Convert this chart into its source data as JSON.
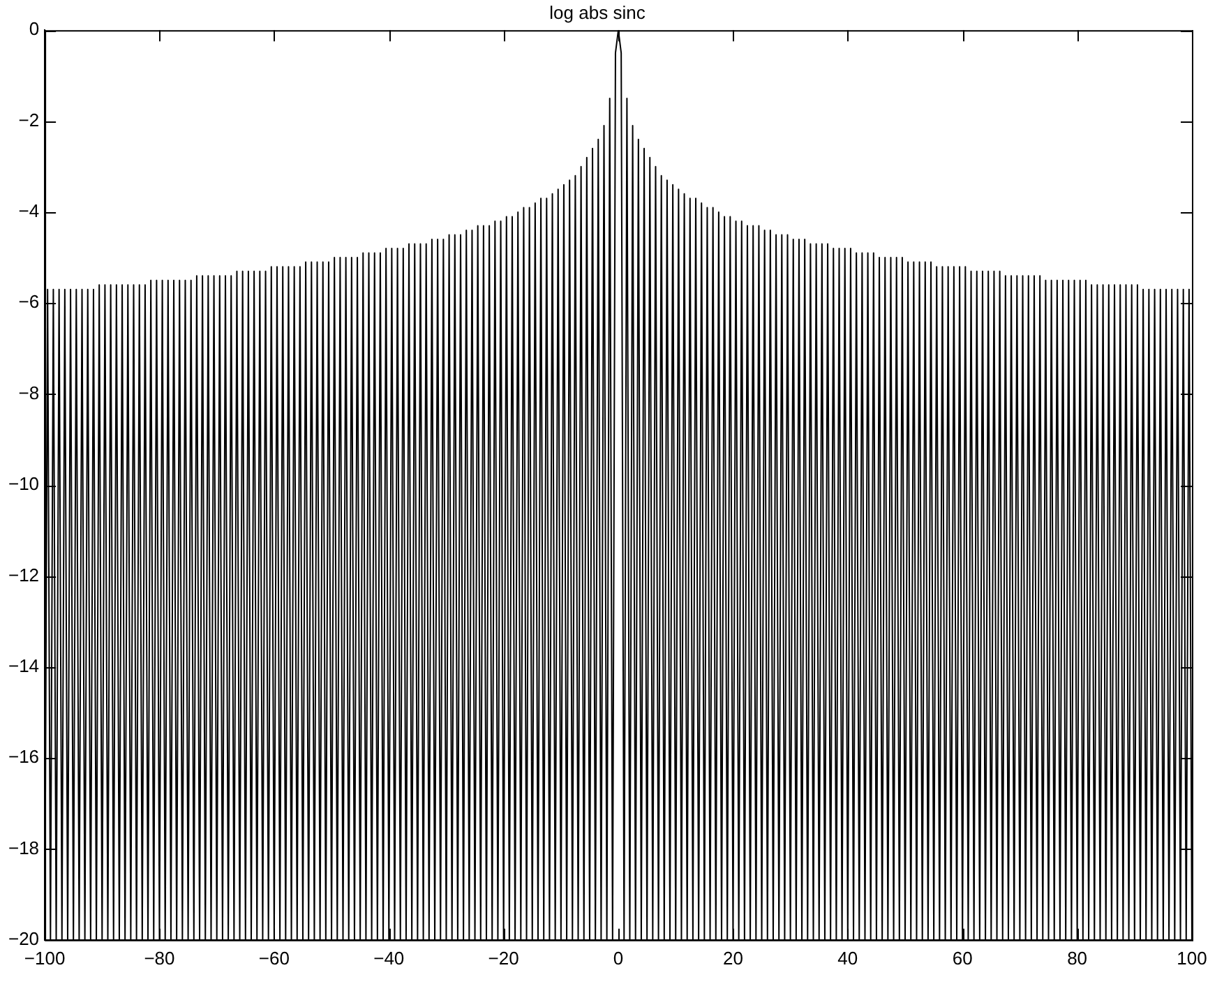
{
  "chart_data": {
    "type": "line",
    "title": "log abs sinc",
    "xlim": [
      -100,
      100
    ],
    "xticks": [
      -100,
      -80,
      -60,
      -40,
      -20,
      0,
      20,
      40,
      60,
      80,
      100
    ],
    "ylim": [
      -20,
      0
    ],
    "yticks": [
      -20,
      -18,
      -16,
      -14,
      -12,
      -10,
      -8,
      -6,
      -4,
      -2,
      0
    ],
    "series": [
      {
        "color": "#000000",
        "x": [
          -100,
          -99.5,
          -99,
          -98.5,
          -98,
          -97.5,
          -97,
          -96.5,
          -96,
          -95.5,
          -95,
          -94.5,
          -94,
          -93.5,
          -93,
          -92.5,
          -92,
          -91.5,
          -91,
          -90.5,
          -90,
          -89.5,
          -89,
          -88.5,
          -88,
          -87.5,
          -87,
          -86.5,
          -86,
          -85.5,
          -85,
          -84.5,
          -84,
          -83.5,
          -83,
          -82.5,
          -82,
          -81.5,
          -81,
          -80.5,
          -80,
          -79.5,
          -79,
          -78.5,
          -78,
          -77.5,
          -77,
          -76.5,
          -76,
          -75.5,
          -75,
          -74.5,
          -74,
          -73.5,
          -73,
          -72.5,
          -72,
          -71.5,
          -71,
          -70.5,
          -70,
          -69.5,
          -69,
          -68.5,
          -68,
          -67.5,
          -67,
          -66.5,
          -66,
          -65.5,
          -65,
          -64.5,
          -64,
          -63.5,
          -63,
          -62.5,
          -62,
          -61.5,
          -61,
          -60.5,
          -60,
          -59.5,
          -59,
          -58.5,
          -58,
          -57.5,
          -57,
          -56.5,
          -56,
          -55.5,
          -55,
          -54.5,
          -54,
          -53.5,
          -53,
          -52.5,
          -52,
          -51.5,
          -51,
          -50.5,
          -50,
          -49.5,
          -49,
          -48.5,
          -48,
          -47.5,
          -47,
          -46.5,
          -46,
          -45.5,
          -45,
          -44.5,
          -44,
          -43.5,
          -43,
          -42.5,
          -42,
          -41.5,
          -41,
          -40.5,
          -40,
          -39.5,
          -39,
          -38.5,
          -38,
          -37.5,
          -37,
          -36.5,
          -36,
          -35.5,
          -35,
          -34.5,
          -34,
          -33.5,
          -33,
          -32.5,
          -32,
          -31.5,
          -31,
          -30.5,
          -30,
          -29.5,
          -29,
          -28.5,
          -28,
          -27.5,
          -27,
          -26.5,
          -26,
          -25.5,
          -25,
          -24.5,
          -24,
          -23.5,
          -23,
          -22.5,
          -22,
          -21.5,
          -21,
          -20.5,
          -20,
          -19.5,
          -19,
          -18.5,
          -18,
          -17.5,
          -17,
          -16.5,
          -16,
          -15.5,
          -15,
          -14.5,
          -14,
          -13.5,
          -13,
          -12.5,
          -12,
          -11.5,
          -11,
          -10.5,
          -10,
          -9.5,
          -9,
          -8.5,
          -8,
          -7.5,
          -7,
          -6.5,
          -6,
          -5.5,
          -5,
          -4.5,
          -4,
          -3.5,
          -3,
          -2.5,
          -2,
          -1.5,
          -1,
          -0.5,
          0,
          0.5,
          1,
          1.5,
          2,
          2.5,
          3,
          3.5,
          4,
          4.5,
          5,
          5.5,
          6,
          6.5,
          7,
          7.5,
          8,
          8.5,
          9,
          9.5,
          10,
          10.5,
          11,
          11.5,
          12,
          12.5,
          13,
          13.5,
          14,
          14.5,
          15,
          15.5,
          16,
          16.5,
          17,
          17.5,
          18,
          18.5,
          19,
          19.5,
          20,
          20.5,
          21,
          21.5,
          22,
          22.5,
          23,
          23.5,
          24,
          24.5,
          25,
          25.5,
          26,
          26.5,
          27,
          27.5,
          28,
          28.5,
          29,
          29.5,
          30,
          30.5,
          31,
          31.5,
          32,
          32.5,
          33,
          33.5,
          34,
          34.5,
          35,
          35.5,
          36,
          36.5,
          37,
          37.5,
          38,
          38.5,
          39,
          39.5,
          40,
          40.5,
          41,
          41.5,
          42,
          42.5,
          43,
          43.5,
          44,
          44.5,
          45,
          45.5,
          46,
          46.5,
          47,
          47.5,
          48,
          48.5,
          49,
          49.5,
          50,
          50.5,
          51,
          51.5,
          52,
          52.5,
          53,
          53.5,
          54,
          54.5,
          55,
          55.5,
          56,
          56.5,
          57,
          57.5,
          58,
          58.5,
          59,
          59.5,
          60,
          60.5,
          61,
          61.5,
          62,
          62.5,
          63,
          63.5,
          64,
          64.5,
          65,
          65.5,
          66,
          66.5,
          67,
          67.5,
          68,
          68.5,
          69,
          69.5,
          70,
          70.5,
          71,
          71.5,
          72,
          72.5,
          73,
          73.5,
          74,
          74.5,
          75,
          75.5,
          76,
          76.5,
          77,
          77.5,
          78,
          78.5,
          79,
          79.5,
          80,
          80.5,
          81,
          81.5,
          82,
          82.5,
          83,
          83.5,
          84,
          84.5,
          85,
          85.5,
          86,
          86.5,
          87,
          87.5,
          88,
          88.5,
          89,
          89.5,
          90,
          90.5,
          91,
          91.5,
          92,
          92.5,
          93,
          93.5,
          94,
          94.5,
          95,
          95.5,
          96,
          96.5,
          97,
          97.5,
          98,
          98.5,
          99,
          99.5,
          100
        ],
        "values": [
          -20,
          -5.7,
          -20,
          -5.7,
          -20,
          -5.7,
          -20,
          -5.7,
          -20,
          -5.7,
          -20,
          -5.7,
          -20,
          -5.7,
          -20,
          -5.7,
          -20,
          -5.7,
          -20,
          -5.6,
          -20,
          -5.6,
          -20,
          -5.6,
          -20,
          -5.6,
          -20,
          -5.6,
          -20,
          -5.6,
          -20,
          -5.6,
          -20,
          -5.6,
          -20,
          -5.6,
          -20,
          -5.5,
          -20,
          -5.5,
          -20,
          -5.5,
          -20,
          -5.5,
          -20,
          -5.5,
          -20,
          -5.5,
          -20,
          -5.5,
          -20,
          -5.5,
          -20,
          -5.4,
          -20,
          -5.4,
          -20,
          -5.4,
          -20,
          -5.4,
          -20,
          -5.4,
          -20,
          -5.4,
          -20,
          -5.4,
          -20,
          -5.3,
          -20,
          -5.3,
          -20,
          -5.3,
          -20,
          -5.3,
          -20,
          -5.3,
          -20,
          -5.3,
          -20,
          -5.2,
          -20,
          -5.2,
          -20,
          -5.2,
          -20,
          -5.2,
          -20,
          -5.2,
          -20,
          -5.2,
          -20,
          -5.1,
          -20,
          -5.1,
          -20,
          -5.1,
          -20,
          -5.1,
          -20,
          -5.1,
          -20,
          -5.0,
          -20,
          -5.0,
          -20,
          -5.0,
          -20,
          -5.0,
          -20,
          -5.0,
          -20,
          -4.9,
          -20,
          -4.9,
          -20,
          -4.9,
          -20,
          -4.9,
          -20,
          -4.8,
          -20,
          -4.8,
          -20,
          -4.8,
          -20,
          -4.8,
          -20,
          -4.7,
          -20,
          -4.7,
          -20,
          -4.7,
          -20,
          -4.7,
          -20,
          -4.6,
          -20,
          -4.6,
          -20,
          -4.6,
          -20,
          -4.5,
          -20,
          -4.5,
          -20,
          -4.5,
          -20,
          -4.4,
          -20,
          -4.4,
          -20,
          -4.3,
          -20,
          -4.3,
          -20,
          -4.3,
          -20,
          -4.2,
          -20,
          -4.2,
          -20,
          -4.1,
          -20,
          -4.1,
          -20,
          -4.0,
          -20,
          -3.9,
          -20,
          -3.9,
          -20,
          -3.8,
          -20,
          -3.7,
          -20,
          -3.7,
          -20,
          -3.6,
          -20,
          -3.5,
          -20,
          -3.4,
          -20,
          -3.3,
          -20,
          -3.2,
          -20,
          -3.0,
          -20,
          -2.8,
          -20,
          -2.6,
          -20,
          -2.4,
          -20,
          -2.1,
          -20,
          -1.5,
          -20,
          -0.5,
          0,
          -0.5,
          -20,
          -1.5,
          -20,
          -2.1,
          -20,
          -2.4,
          -20,
          -2.6,
          -20,
          -2.8,
          -20,
          -3.0,
          -20,
          -3.2,
          -20,
          -3.3,
          -20,
          -3.4,
          -20,
          -3.5,
          -20,
          -3.6,
          -20,
          -3.7,
          -20,
          -3.7,
          -20,
          -3.8,
          -20,
          -3.9,
          -20,
          -3.9,
          -20,
          -4.0,
          -20,
          -4.1,
          -20,
          -4.1,
          -20,
          -4.2,
          -20,
          -4.2,
          -20,
          -4.3,
          -20,
          -4.3,
          -20,
          -4.3,
          -20,
          -4.4,
          -20,
          -4.4,
          -20,
          -4.5,
          -20,
          -4.5,
          -20,
          -4.5,
          -20,
          -4.6,
          -20,
          -4.6,
          -20,
          -4.6,
          -20,
          -4.7,
          -20,
          -4.7,
          -20,
          -4.7,
          -20,
          -4.7,
          -20,
          -4.8,
          -20,
          -4.8,
          -20,
          -4.8,
          -20,
          -4.8,
          -20,
          -4.9,
          -20,
          -4.9,
          -20,
          -4.9,
          -20,
          -4.9,
          -20,
          -5.0,
          -20,
          -5.0,
          -20,
          -5.0,
          -20,
          -5.0,
          -20,
          -5.0,
          -20,
          -5.1,
          -20,
          -5.1,
          -20,
          -5.1,
          -20,
          -5.1,
          -20,
          -5.1,
          -20,
          -5.2,
          -20,
          -5.2,
          -20,
          -5.2,
          -20,
          -5.2,
          -20,
          -5.2,
          -20,
          -5.2,
          -20,
          -5.3,
          -20,
          -5.3,
          -20,
          -5.3,
          -20,
          -5.3,
          -20,
          -5.3,
          -20,
          -5.3,
          -20,
          -5.4,
          -20,
          -5.4,
          -20,
          -5.4,
          -20,
          -5.4,
          -20,
          -5.4,
          -20,
          -5.4,
          -20,
          -5.4,
          -20,
          -5.5,
          -20,
          -5.5,
          -20,
          -5.5,
          -20,
          -5.5,
          -20,
          -5.5,
          -20,
          -5.5,
          -20,
          -5.5,
          -20,
          -5.5,
          -20,
          -5.6,
          -20,
          -5.6,
          -20,
          -5.6,
          -20,
          -5.6,
          -20,
          -5.6,
          -20,
          -5.6,
          -20,
          -5.6,
          -20,
          -5.6,
          -20,
          -5.6,
          -20,
          -5.7,
          -20,
          -5.7,
          -20,
          -5.7,
          -20,
          -5.7,
          -20,
          -5.7,
          -20,
          -5.7,
          -20,
          -5.7,
          -20,
          -5.7,
          -20,
          -5.7,
          -20
        ]
      }
    ]
  }
}
